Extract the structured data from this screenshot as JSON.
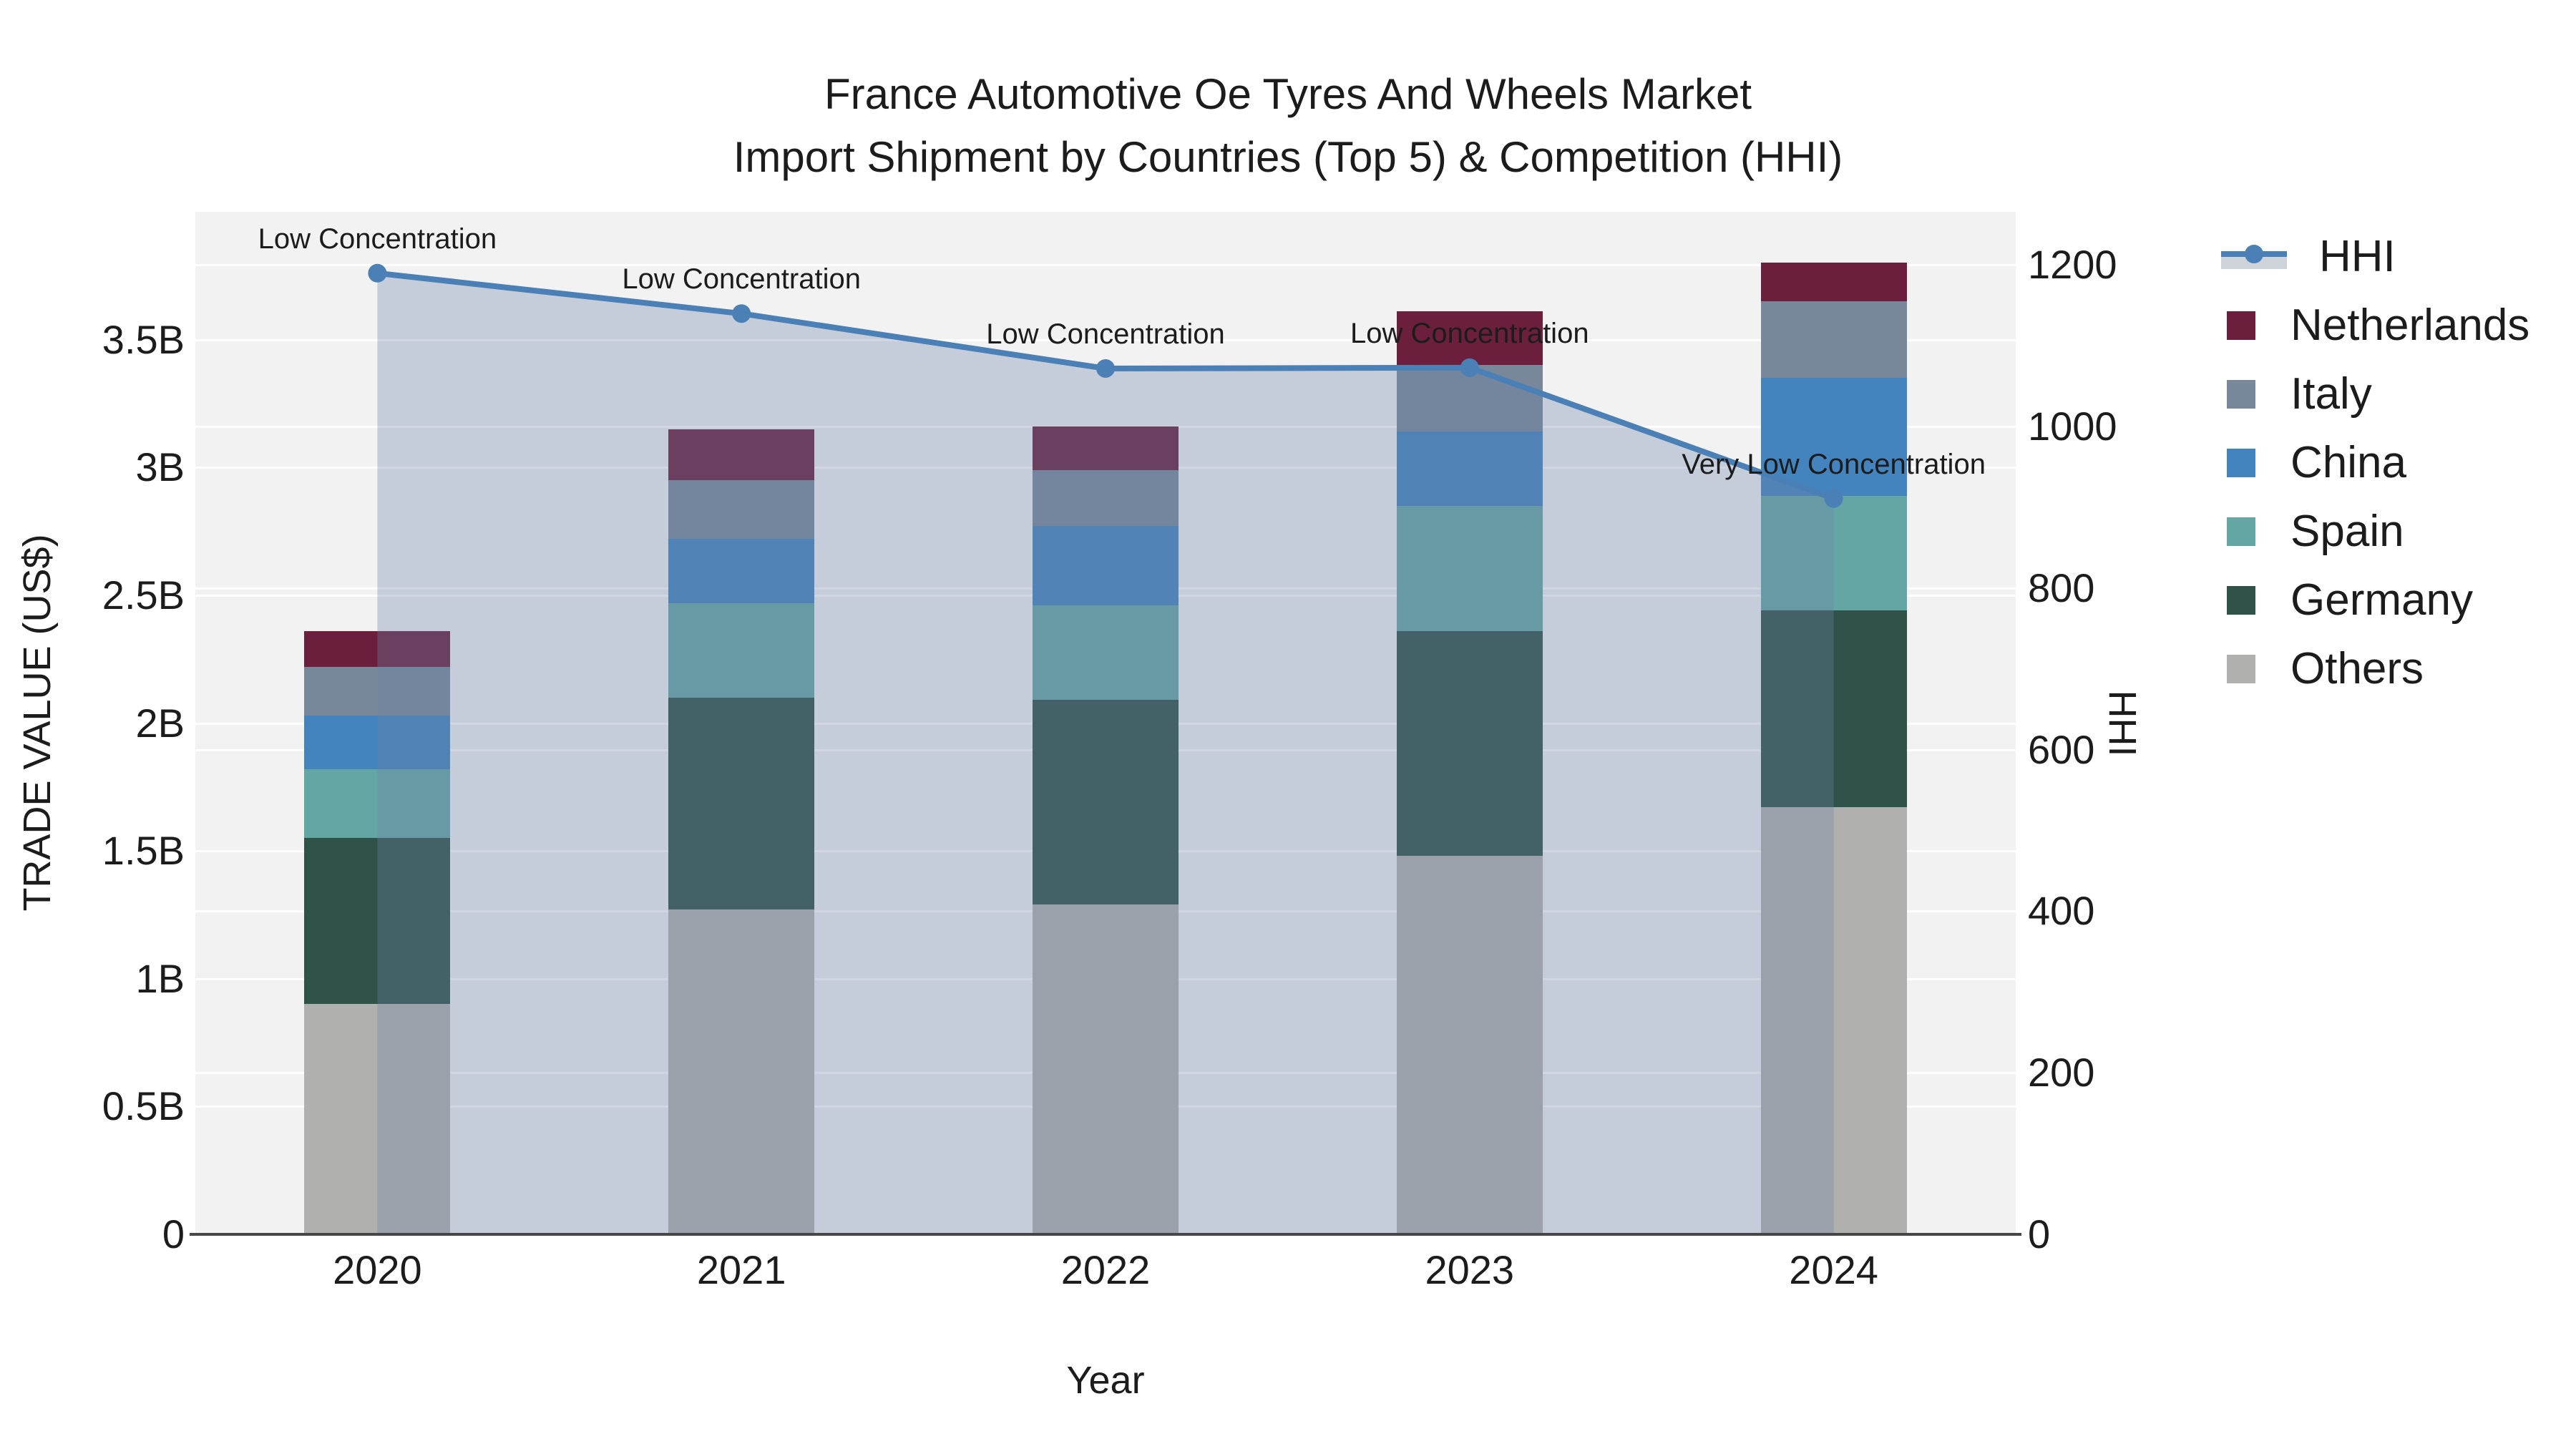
{
  "title": {
    "line1": "France Automotive Oe Tyres And Wheels Market",
    "line2": "Import Shipment by Countries (Top 5) & Competition (HHI)"
  },
  "axes": {
    "x": {
      "title": "Year",
      "categories": [
        "2020",
        "2021",
        "2022",
        "2023",
        "2024"
      ]
    },
    "y_left": {
      "title": "TRADE VALUE (US$)",
      "tick_labels": [
        "0",
        "0.5B",
        "1B",
        "1.5B",
        "2B",
        "2.5B",
        "3B",
        "3.5B"
      ],
      "tick_values": [
        0,
        0.5,
        1,
        1.5,
        2,
        2.5,
        3,
        3.5
      ],
      "range": [
        0,
        4
      ]
    },
    "y_right": {
      "title": "HHI",
      "tick_labels": [
        "0",
        "200",
        "400",
        "600",
        "800",
        "1000",
        "1200"
      ],
      "tick_values": [
        0,
        200,
        400,
        600,
        800,
        1000,
        1200
      ],
      "range": [
        0,
        1266
      ]
    }
  },
  "chart_data": {
    "type": "bar+line",
    "title": "France Automotive Oe Tyres And Wheels Market — Import Shipment by Countries (Top 5) & Competition (HHI)",
    "categories": [
      "2020",
      "2021",
      "2022",
      "2023",
      "2024"
    ],
    "bar_stack_order_bottom_to_top": [
      "Others",
      "Germany",
      "Spain",
      "China",
      "Italy",
      "Netherlands"
    ],
    "bar_value_unit": "billion US$ (trade value)",
    "series": [
      {
        "name": "Others",
        "values": [
          0.9,
          1.27,
          1.29,
          1.48,
          1.67
        ]
      },
      {
        "name": "Germany",
        "values": [
          0.65,
          0.83,
          0.8,
          0.88,
          0.77
        ]
      },
      {
        "name": "Spain",
        "values": [
          0.27,
          0.37,
          0.37,
          0.49,
          0.45
        ]
      },
      {
        "name": "China",
        "values": [
          0.21,
          0.25,
          0.31,
          0.29,
          0.46
        ]
      },
      {
        "name": "Italy",
        "values": [
          0.19,
          0.23,
          0.22,
          0.26,
          0.3
        ]
      },
      {
        "name": "Netherlands",
        "values": [
          0.14,
          0.2,
          0.17,
          0.21,
          0.15
        ]
      }
    ],
    "bar_totals": [
      2.36,
      3.15,
      3.16,
      3.61,
      3.8
    ],
    "line_series": {
      "name": "HHI",
      "axis": "right",
      "values": [
        1190,
        1140,
        1072,
        1073,
        911
      ]
    },
    "annotations": [
      {
        "x": "2020",
        "label": "Low Concentration"
      },
      {
        "x": "2021",
        "label": "Low Concentration"
      },
      {
        "x": "2022",
        "label": "Low Concentration"
      },
      {
        "x": "2023",
        "label": "Low Concentration"
      },
      {
        "x": "2024",
        "label": "Very Low Concentration"
      }
    ],
    "xlabel": "Year",
    "ylabel": "TRADE VALUE (US$)",
    "ylabel2": "HHI",
    "ylim": [
      0,
      4
    ],
    "ylim2": [
      0,
      1266
    ],
    "grid": true,
    "legend_position": "right"
  },
  "legend": {
    "order": [
      "HHI",
      "Netherlands",
      "Italy",
      "China",
      "Spain",
      "Germany",
      "Others"
    ]
  },
  "colors": {
    "plot_bg": "#f2f2f3",
    "grid": "#ffffff",
    "axis_line": "#474747",
    "hhi_line": "#4a80b6",
    "hhi_area_fill": "rgba(110,132,168,0.33)",
    "hhi_legend_band": "#ced3da",
    "Netherlands": "#6b1f3c",
    "Italy": "#78879a",
    "China": "#4383be",
    "Spain": "#64a6a4",
    "Germany": "#2f5249",
    "Others": "#b0b0ae"
  }
}
